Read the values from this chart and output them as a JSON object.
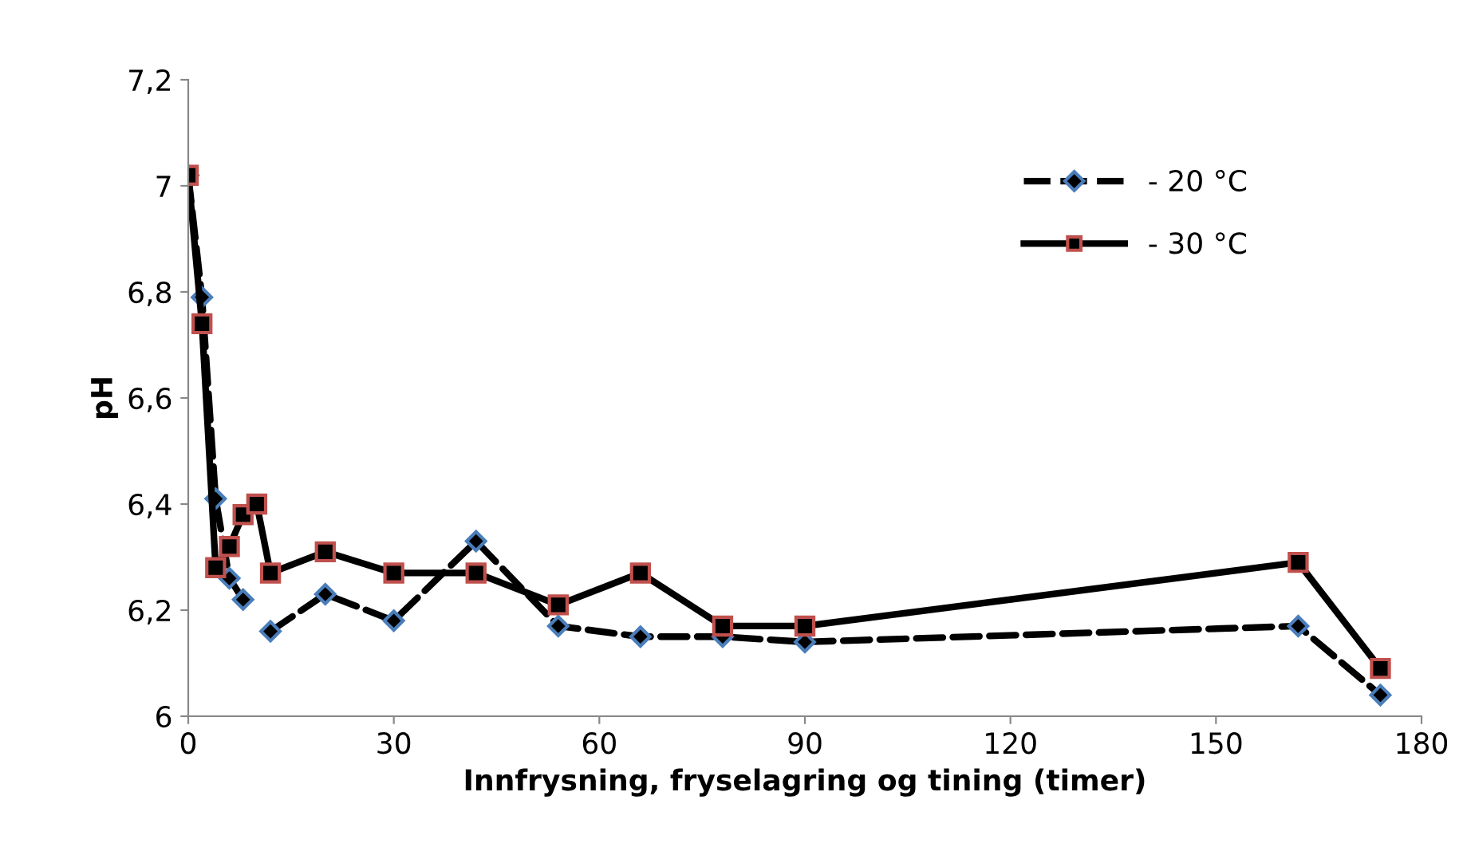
{
  "chart_data": {
    "type": "line",
    "xlabel": "Innfrysning, fryselagring og tining (timer)",
    "ylabel": "pH",
    "x": [
      0,
      2,
      4,
      6,
      8,
      10,
      12,
      20,
      30,
      42,
      54,
      66,
      78,
      90,
      162,
      174
    ],
    "series": [
      {
        "name": "- 20 °C",
        "color": "#4a7ebb",
        "marker": "diamond",
        "line_style": "dashed",
        "values": [
          7.02,
          6.79,
          6.41,
          6.26,
          6.22,
          null,
          6.16,
          6.23,
          6.18,
          6.33,
          6.17,
          6.15,
          6.15,
          6.14,
          6.17,
          6.04
        ]
      },
      {
        "name": "- 30 °C",
        "color": "#c0504d",
        "marker": "square",
        "line_style": "solid",
        "values": [
          7.02,
          6.74,
          6.28,
          6.32,
          6.38,
          6.4,
          6.27,
          6.31,
          6.27,
          6.27,
          6.21,
          6.27,
          6.17,
          6.17,
          6.29,
          6.09
        ]
      }
    ],
    "xlim": [
      0,
      180
    ],
    "xticks": [
      0,
      30,
      60,
      90,
      120,
      150,
      180
    ],
    "ylim": [
      6,
      7.2
    ],
    "yticks": [
      6,
      {
        "value": 6.2,
        "label": "6,2"
      },
      {
        "value": 6.4,
        "label": "6,4"
      },
      {
        "value": 6.6,
        "label": "6,6"
      },
      {
        "value": 6.8,
        "label": "6,8"
      },
      7,
      {
        "value": 7.2,
        "label": "7,2"
      }
    ],
    "grid": false,
    "legend": "top right"
  }
}
